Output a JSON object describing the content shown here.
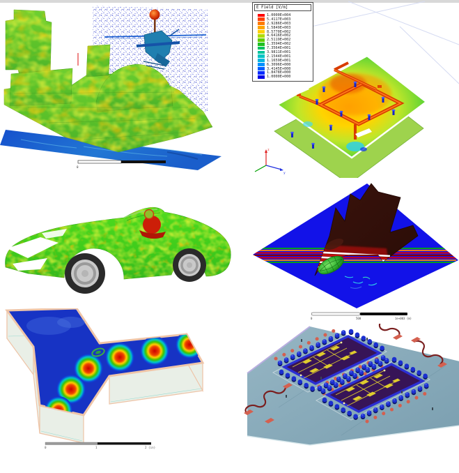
{
  "colors": {
    "top_bar": "#d8d8d8",
    "background": "#ffffff",
    "field_rainbow": [
      "#ff0000",
      "#ff4000",
      "#ff7b00",
      "#ffa500",
      "#ffd000",
      "#b0dc00",
      "#62cf00",
      "#20c020",
      "#00c060",
      "#00c49a",
      "#00c4c4",
      "#00b4e0",
      "#0092ff",
      "#005eff",
      "#002bff",
      "#0000e6"
    ],
    "sea_blue": "#1a5ecb",
    "ship_green": "#62c52d",
    "jet_plane_blue": "#1212e8",
    "jet_body": "#34110b",
    "waveguide_shell": "#f0c8ac",
    "chip_substrate": "#8fb0bf",
    "die_purple": "#371457",
    "die_rim_blue": "#2b2fd4",
    "circuit_yellow": "#decb2e"
  },
  "legend": {
    "title": "E Field [V/m]",
    "entries": [
      {
        "value": "1.0000E+004",
        "color": "#ff0000"
      },
      {
        "value": "5.4117E+003",
        "color": "#ff4000"
      },
      {
        "value": "2.9286E+003",
        "color": "#ff7b00"
      },
      {
        "value": "1.5849E+003",
        "color": "#ffa500"
      },
      {
        "value": "8.5770E+002",
        "color": "#ffd000"
      },
      {
        "value": "4.6416E+002",
        "color": "#b0dc00"
      },
      {
        "value": "2.5119E+002",
        "color": "#62cf00"
      },
      {
        "value": "1.3594E+002",
        "color": "#20c020"
      },
      {
        "value": "7.3564E+001",
        "color": "#00c060"
      },
      {
        "value": "3.9811E+001",
        "color": "#00c49a"
      },
      {
        "value": "2.1544E+001",
        "color": "#00c4c4"
      },
      {
        "value": "1.1659E+001",
        "color": "#00b4e0"
      },
      {
        "value": "6.3096E+000",
        "color": "#0092ff"
      },
      {
        "value": "3.4145E+000",
        "color": "#005eff"
      },
      {
        "value": "1.8478E+000",
        "color": "#002bff"
      },
      {
        "value": "1.0000E+000",
        "color": "#0000e6"
      }
    ]
  },
  "panels": {
    "ship": {
      "scale_bar": {
        "labels": [
          "0"
        ]
      }
    },
    "pcb": {
      "axis_labels": {
        "z": "z",
        "y": "y"
      }
    },
    "jet": {
      "scale_bar": {
        "labels": [
          "0",
          "500",
          "1e+003 (m)"
        ]
      }
    },
    "waveguide": {
      "scale_bar": {
        "labels": [
          "0",
          "1",
          "2 (in)"
        ]
      }
    }
  }
}
